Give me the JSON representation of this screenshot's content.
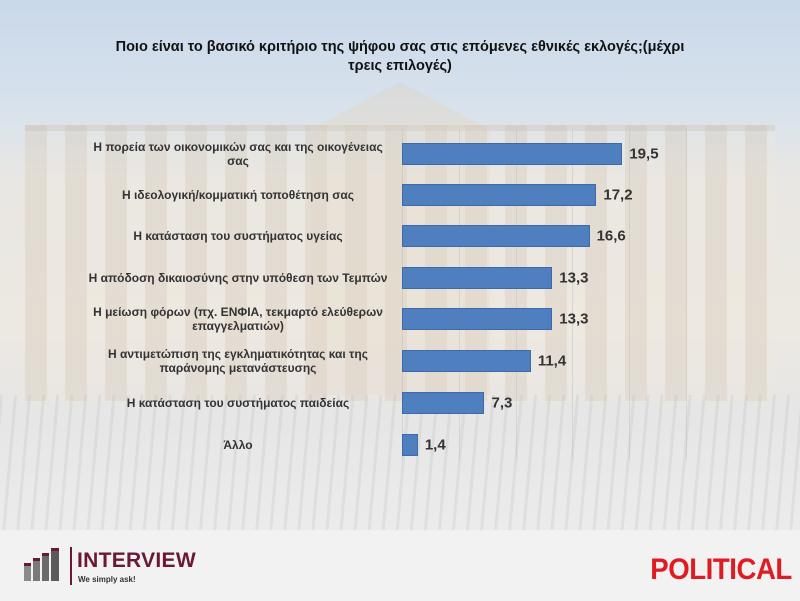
{
  "title": "Ποιο είναι το βασικό κριτήριο της ψήφου σας στις επόμενες εθνικές εκλογές;(μέχρι τρεις επιλογές)",
  "title_lines": [
    "Ποιο είναι το βασικό κριτήριο της ψήφου σας στις επόμενες εθνικές εκλογές;(μέχρι",
    "τρεις επιλογές)"
  ],
  "colors": {
    "bar": "#4f7fbf",
    "political_red": "#e01b22",
    "interview_maroon": "#6b1838"
  },
  "rows": [
    {
      "label": "Η πορεία των οικονομικών σας και της οικογένειας σας",
      "value": 19.5,
      "value_label": "19,5"
    },
    {
      "label": "Η ιδεολογική/κομματική τοποθέτηση σας",
      "value": 17.2,
      "value_label": "17,2"
    },
    {
      "label": "Η κατάσταση του συστήματος υγείας",
      "value": 16.6,
      "value_label": "16,6"
    },
    {
      "label": "Η απόδοση δικαιοσύνης στην υπόθεση των Τεμπών",
      "value": 13.3,
      "value_label": "13,3"
    },
    {
      "label": "Η μείωση φόρων (πχ. ΕΝΦΙΑ, τεκμαρτό ελεύθερων επαγγελματιών)",
      "value": 13.3,
      "value_label": "13,3"
    },
    {
      "label": "Η αντιμετώπιση της εγκληματικότητας και της παράνομης μετανάστευσης",
      "value": 11.4,
      "value_label": "11,4"
    },
    {
      "label": "Η κατάσταση του συστήματος παιδείας",
      "value": 7.3,
      "value_label": "7,3"
    },
    {
      "label": "Άλλο",
      "value": 1.4,
      "value_label": "1,4"
    }
  ],
  "logos": {
    "interview": {
      "name": "INTERVIEW",
      "tagline": "We simply ask!"
    },
    "political": {
      "name": "POLITICAL"
    }
  },
  "chart_data": {
    "type": "bar",
    "orientation": "horizontal",
    "title": "Ποιο είναι το βασικό κριτήριο της ψήφου σας στις επόμενες εθνικές εκλογές;(μέχρι τρεις επιλογές)",
    "categories": [
      "Η πορεία των οικονομικών σας και της οικογένειας σας",
      "Η ιδεολογική/κομματική τοποθέτηση σας",
      "Η κατάσταση του συστήματος υγείας",
      "Η απόδοση δικαιοσύνης στην υπόθεση των Τεμπών",
      "Η μείωση φόρων (πχ. ΕΝΦΙΑ, τεκμαρτό ελεύθερων επαγγελματιών)",
      "Η αντιμετώπιση της εγκληματικότητας και της παράνομης μετανάστευσης",
      "Η κατάσταση του συστήματος παιδείας",
      "Άλλο"
    ],
    "values": [
      19.5,
      17.2,
      16.6,
      13.3,
      13.3,
      11.4,
      7.3,
      1.4
    ],
    "data_labels": [
      "19,5",
      "17,2",
      "16,6",
      "13,3",
      "13,3",
      "11,4",
      "7,3",
      "1,4"
    ],
    "xlabel": "",
    "ylabel": "",
    "xlim": [
      0,
      25
    ],
    "grid": true,
    "legend": null,
    "series_color": "#4f7fbf"
  }
}
